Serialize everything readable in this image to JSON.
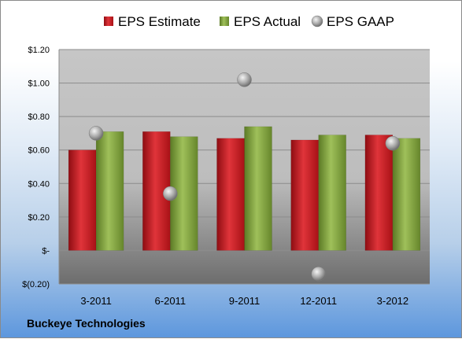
{
  "chart_data": {
    "type": "bar",
    "categories": [
      "3-2011",
      "6-2011",
      "9-2011",
      "12-2011",
      "3-2012"
    ],
    "series": [
      {
        "name": "EPS Estimate",
        "kind": "bar",
        "color": "#c8161d",
        "values": [
          0.6,
          0.71,
          0.67,
          0.66,
          0.69
        ]
      },
      {
        "name": "EPS Actual",
        "kind": "bar",
        "color": "#7fa03b",
        "values": [
          0.71,
          0.68,
          0.74,
          0.69,
          0.67
        ]
      },
      {
        "name": "EPS GAAP",
        "kind": "scatter",
        "color": "#a9a9a9",
        "values": [
          0.7,
          0.34,
          1.02,
          -0.14,
          0.64
        ]
      }
    ],
    "y_ticks": [
      {
        "value": 1.2,
        "label": "$1.20"
      },
      {
        "value": 1.0,
        "label": "$1.00"
      },
      {
        "value": 0.8,
        "label": "$0.80"
      },
      {
        "value": 0.6,
        "label": "$0.60"
      },
      {
        "value": 0.4,
        "label": "$0.40"
      },
      {
        "value": 0.2,
        "label": "$0.20"
      },
      {
        "value": 0.0,
        "label": "$-"
      },
      {
        "value": -0.2,
        "label": "$(0.20)"
      }
    ],
    "ylim": [
      -0.2,
      1.2
    ],
    "grid": true,
    "legend_position": "top"
  },
  "footer": {
    "company": "Buckeye Technologies"
  }
}
